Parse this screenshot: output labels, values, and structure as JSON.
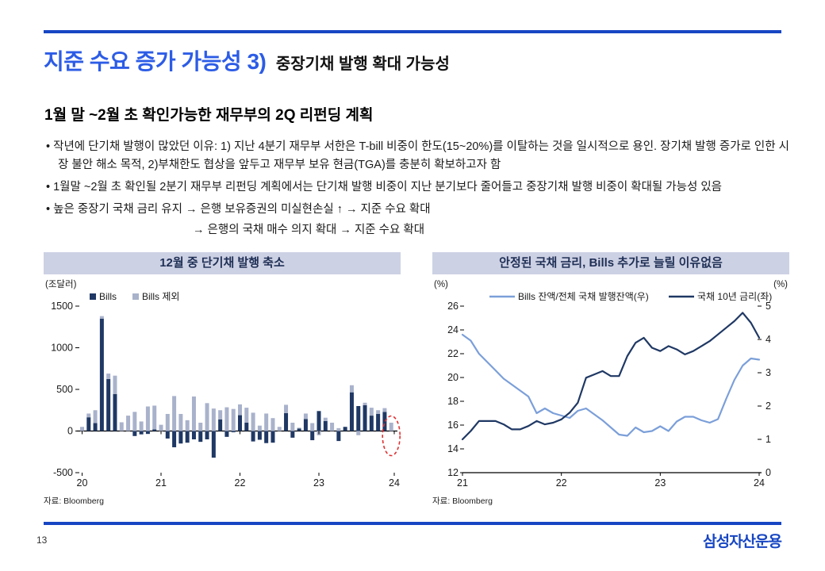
{
  "header": {
    "title_main": "지준 수요 증가 가능성 3)",
    "title_sub": "중장기채 발행 확대 가능성"
  },
  "subtitle": "1월 말 ~2월 초 확인가능한 재무부의 2Q 리펀딩 계획",
  "bullets": [
    "작년에 단기채 발행이 많았던 이유: 1) 지난 4분기 재무부 서한은 T-bill 비중이 한도(15~20%)를 이탈하는 것을 일시적으로 용인. 장기채 발행 증가로 인한 시장 불안 해소 목적, 2)부채한도 협상을 앞두고 재무부 보유 현금(TGA)를 충분히 확보하고자 함",
    "1월말 ~2월 초 확인될 2분기 재무부 리펀딩 계획에서는 단기채 발행 비중이 지난 분기보다 줄어들고 중장기채 발행 비중이 확대될 가능성 있음",
    "높은 중장기 국채 금리 유지 → 은행 보유증권의 미실현손실 ↑ → 지준 수요 확대",
    "→ 은행의 국채 매수 의지 확대 → 지준 수요 확대"
  ],
  "panels": {
    "left": {
      "title": "12월 중 단기채 발행 축소",
      "source": "자료: Bloomberg"
    },
    "right": {
      "title": "안정된 국채 금리, Bills 추가로 늘릴 이유없음",
      "source": "자료: Bloomberg"
    }
  },
  "colors": {
    "accent_blue": "#1746c3",
    "title_blue": "#2c5ce6",
    "band_bg": "#cdd1e4",
    "navy": "#1f3864",
    "light_bar": "#a9b2cb",
    "light_line": "#7b9fd9",
    "annotation_red": "#e03030"
  },
  "chart_data": [
    {
      "type": "bar",
      "title": "12월 중 단기채 발행 축소",
      "unit_label": "(조달러)",
      "stacked": true,
      "frequency": "monthly",
      "x_start": "2020-01",
      "x_end": "2023-12",
      "x_tick_labels": [
        "20",
        "21",
        "22",
        "23",
        "24"
      ],
      "ylim": [
        -500,
        1500
      ],
      "yticks": [
        1500,
        1000,
        500,
        0,
        -500
      ],
      "legend_position": "top-left",
      "series": [
        {
          "name": "Bills",
          "color": "#1f3864",
          "values": [
            0,
            165,
            95,
            1350,
            625,
            445,
            0,
            0,
            -60,
            -40,
            -35,
            20,
            0,
            -90,
            -195,
            -150,
            -140,
            -100,
            -130,
            -100,
            -320,
            140,
            -70,
            -15,
            190,
            100,
            -125,
            -105,
            -145,
            -140,
            0,
            215,
            -80,
            30,
            145,
            -110,
            240,
            120,
            0,
            -120,
            50,
            465,
            300,
            310,
            185,
            205,
            230,
            0
          ]
        },
        {
          "name": "Bills 제외",
          "color": "#a9b2cb",
          "values": [
            50,
            45,
            155,
            30,
            65,
            220,
            105,
            185,
            230,
            115,
            295,
            285,
            75,
            205,
            420,
            205,
            130,
            415,
            100,
            335,
            270,
            110,
            285,
            265,
            130,
            180,
            220,
            65,
            210,
            155,
            50,
            100,
            100,
            10,
            65,
            95,
            -50,
            40,
            100,
            35,
            0,
            85,
            -50,
            30,
            95,
            45,
            45,
            100
          ]
        }
      ],
      "annotation": {
        "type": "ellipse",
        "style": "dashed",
        "color": "#e03030",
        "target": "2023-12"
      },
      "source": "자료: Bloomberg"
    },
    {
      "type": "line",
      "title": "안정된 국채 금리, Bills 추가로 늘릴 이유없음",
      "left_axis_label": "(%)",
      "right_axis_label": "(%)",
      "frequency": "monthly",
      "x_start": "2021-01",
      "x_end": "2024-01",
      "x_tick_labels": [
        "21",
        "22",
        "23",
        "24"
      ],
      "left_ylim": [
        12,
        26
      ],
      "left_yticks": [
        26,
        24,
        22,
        20,
        18,
        16,
        14,
        12
      ],
      "right_ylim": [
        0,
        5
      ],
      "right_yticks": [
        5,
        4,
        3,
        2,
        1,
        0
      ],
      "legend_position": "top-center",
      "series": [
        {
          "name": "Bills 잔액/전체 국채 발행잔액(우)",
          "color": "#7b9fd9",
          "axis": "left",
          "values": [
            23.6,
            23.1,
            22.0,
            21.3,
            20.6,
            19.9,
            19.4,
            18.9,
            18.4,
            17.0,
            17.4,
            17.0,
            16.8,
            16.6,
            17.2,
            17.4,
            16.9,
            16.4,
            15.8,
            15.2,
            15.1,
            15.8,
            15.4,
            15.5,
            15.9,
            15.5,
            16.3,
            16.7,
            16.7,
            16.4,
            16.2,
            16.5,
            18.2,
            19.8,
            21.0,
            21.6,
            21.5
          ]
        },
        {
          "name": "국채 10년 금리(좌)",
          "color": "#1f3864",
          "axis": "right",
          "values": [
            1.0,
            1.25,
            1.55,
            1.55,
            1.55,
            1.45,
            1.3,
            1.3,
            1.4,
            1.55,
            1.45,
            1.5,
            1.6,
            1.8,
            2.1,
            2.85,
            2.95,
            3.05,
            2.9,
            2.9,
            3.5,
            3.9,
            4.05,
            3.75,
            3.65,
            3.8,
            3.7,
            3.55,
            3.65,
            3.8,
            3.95,
            4.15,
            4.35,
            4.55,
            4.8,
            4.5,
            4.05
          ]
        }
      ],
      "source": "자료: Bloomberg"
    }
  ],
  "footer": {
    "page": "13",
    "logo": "삼성자산운용"
  }
}
